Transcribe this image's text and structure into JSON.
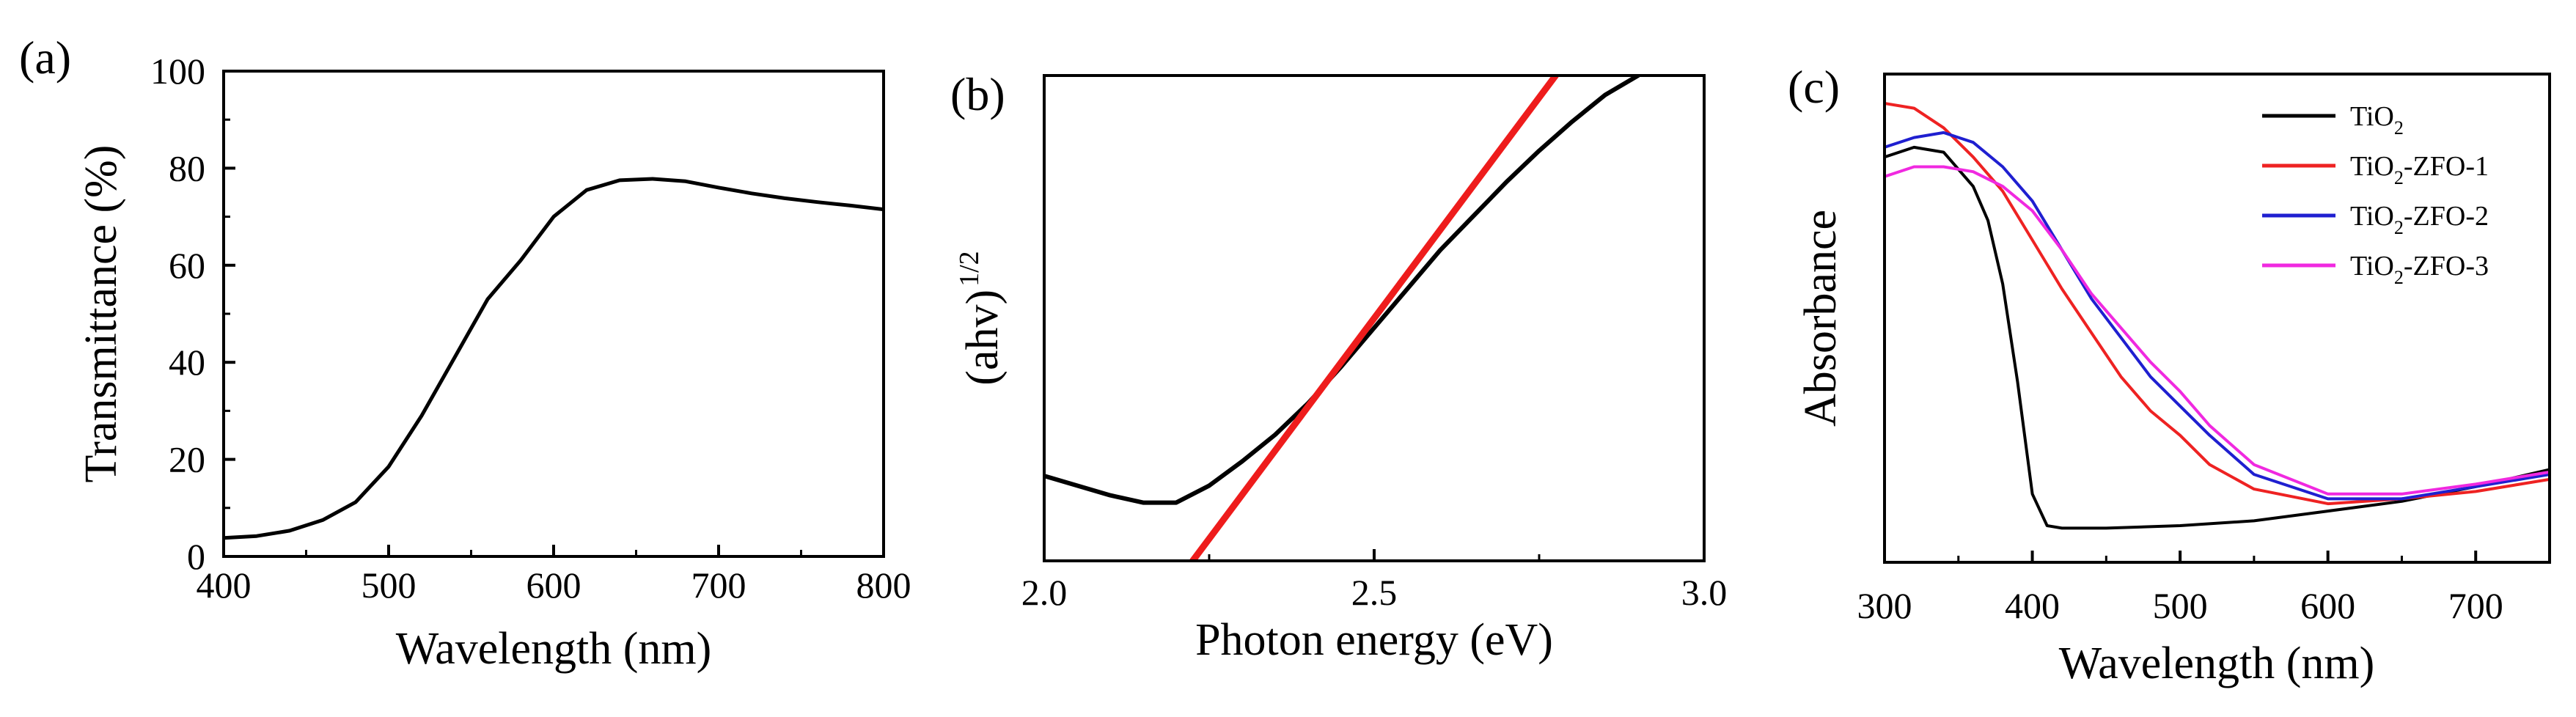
{
  "chart_data": [
    {
      "panel_label": "(a)",
      "type": "line",
      "xlabel": "Wavelength (nm)",
      "ylabel": "Transmittance (%)",
      "xlim": [
        400,
        800
      ],
      "ylim": [
        0,
        100
      ],
      "xticks": [
        400,
        500,
        600,
        700,
        800
      ],
      "yticks": [
        0,
        20,
        40,
        60,
        80,
        100
      ],
      "series": [
        {
          "name": "Transmittance",
          "color": "#000000",
          "x": [
            400,
            420,
            440,
            460,
            480,
            500,
            520,
            540,
            560,
            580,
            600,
            620,
            640,
            660,
            680,
            700,
            720,
            740,
            760,
            780,
            800
          ],
          "y": [
            3.8,
            4.2,
            5.3,
            7.5,
            11.2,
            18.5,
            29,
            41,
            53,
            61,
            70,
            75.5,
            77.5,
            77.8,
            77.3,
            76,
            74.8,
            73.8,
            73,
            72.3,
            71.5
          ]
        }
      ]
    },
    {
      "panel_label": "(b)",
      "type": "line",
      "xlabel": "Photon energy (eV)",
      "ylabel": "(ahv)",
      "ylabel_sup": "1/2",
      "xlim": [
        2.0,
        3.0
      ],
      "ylim": [
        0,
        100
      ],
      "xticks": [
        2.0,
        2.5,
        3.0
      ],
      "xtick_labels": [
        "2.0",
        "2.5",
        "3.0"
      ],
      "yticks": [],
      "series": [
        {
          "name": "(ahv)^1/2",
          "color": "#000000",
          "x": [
            2.0,
            2.05,
            2.1,
            2.15,
            2.2,
            2.25,
            2.3,
            2.35,
            2.4,
            2.45,
            2.5,
            2.55,
            2.6,
            2.65,
            2.7,
            2.75,
            2.8,
            2.85,
            2.9
          ],
          "y": [
            17.5,
            15.5,
            13.5,
            12,
            12,
            15.5,
            20.5,
            26,
            32.5,
            40,
            48,
            56,
            64,
            71,
            78,
            84.5,
            90.5,
            96,
            100
          ]
        },
        {
          "name": "linear fit",
          "color": "#ee1c1c",
          "x": [
            2.225,
            2.775
          ],
          "y": [
            0,
            100
          ]
        }
      ]
    },
    {
      "panel_label": "(c)",
      "type": "line",
      "xlabel": "Wavelength (nm)",
      "ylabel": "Absorbance",
      "xlim": [
        300,
        750
      ],
      "ylim": [
        0,
        100
      ],
      "xticks": [
        300,
        400,
        500,
        600,
        700
      ],
      "yticks": [],
      "legend": {
        "position": "top-right",
        "entries": [
          {
            "base": "TiO",
            "sub": "2",
            "rest": "",
            "color": "#000000"
          },
          {
            "base": "TiO",
            "sub": "2",
            "rest": "-ZFO-1",
            "color": "#ee2222"
          },
          {
            "base": "TiO",
            "sub": "2",
            "rest": "-ZFO-2",
            "color": "#1f1fd0"
          },
          {
            "base": "TiO",
            "sub": "2",
            "rest": "-ZFO-3",
            "color": "#f029e0"
          }
        ]
      },
      "series": [
        {
          "name": "TiO2",
          "color": "#000000",
          "x": [
            300,
            320,
            340,
            360,
            370,
            380,
            390,
            400,
            410,
            420,
            450,
            500,
            550,
            600,
            650,
            700,
            750
          ],
          "y": [
            83,
            85,
            84,
            77,
            70,
            57,
            37,
            14,
            7.5,
            7,
            7,
            7.5,
            8.5,
            10.5,
            12.5,
            15.5,
            19
          ]
        },
        {
          "name": "TiO2-ZFO-1",
          "color": "#ee2222",
          "x": [
            300,
            320,
            340,
            360,
            380,
            400,
            420,
            440,
            460,
            480,
            500,
            520,
            550,
            600,
            650,
            700,
            750
          ],
          "y": [
            94,
            93,
            89,
            83,
            76,
            66,
            56,
            47,
            38,
            31,
            26,
            20,
            15,
            12,
            13,
            14.5,
            17
          ]
        },
        {
          "name": "TiO2-ZFO-2",
          "color": "#1f1fd0",
          "x": [
            300,
            320,
            340,
            360,
            380,
            400,
            420,
            440,
            460,
            480,
            500,
            520,
            550,
            600,
            650,
            700,
            750
          ],
          "y": [
            85,
            87,
            88,
            86,
            81,
            74,
            64,
            54,
            46,
            38,
            32,
            26,
            18,
            13,
            13,
            15.5,
            18
          ]
        },
        {
          "name": "TiO2-ZFO-3",
          "color": "#f029e0",
          "x": [
            300,
            320,
            340,
            360,
            380,
            400,
            420,
            440,
            460,
            480,
            500,
            520,
            550,
            600,
            650,
            700,
            750
          ],
          "y": [
            79,
            81,
            81,
            80,
            77,
            72,
            64,
            55,
            48,
            41,
            35,
            28,
            20,
            14,
            14,
            16,
            18.5
          ]
        }
      ]
    }
  ]
}
